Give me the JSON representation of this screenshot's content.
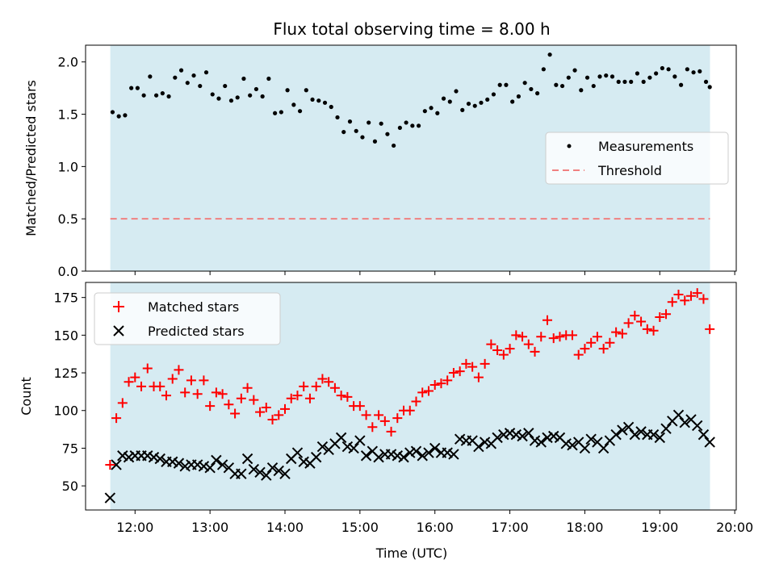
{
  "figure_title": "Flux total observing time = 8.00 h",
  "chart_data": [
    {
      "type": "scatter",
      "title": "Flux total observing time = 8.00 h",
      "xlabel": "",
      "ylabel": "Matched/Predicted stars",
      "x_range_hours": [
        11.34,
        20.02
      ],
      "ylim": [
        0,
        2.16
      ],
      "yticks": [
        "0.0",
        "0.5",
        "1.0",
        "1.5",
        "2.0"
      ],
      "shaded_span_hours": [
        11.67,
        19.67
      ],
      "legend_position": "center-right",
      "threshold": {
        "name": "Threshold",
        "value": 0.5,
        "color": "#f08080"
      },
      "series": [
        {
          "name": "Measurements",
          "color": "#000000",
          "marker": "dot",
          "x": [
            "11:42",
            "11:47",
            "11:52",
            "11:57",
            "12:02",
            "12:07",
            "12:12",
            "12:17",
            "12:22",
            "12:27",
            "12:32",
            "12:37",
            "12:42",
            "12:47",
            "12:52",
            "12:57",
            "13:02",
            "13:07",
            "13:12",
            "13:17",
            "13:22",
            "13:27",
            "13:32",
            "13:37",
            "13:42",
            "13:47",
            "13:52",
            "13:57",
            "14:02",
            "14:07",
            "14:12",
            "14:17",
            "14:22",
            "14:27",
            "14:32",
            "14:37",
            "14:42",
            "14:47",
            "14:52",
            "14:57",
            "15:02",
            "15:07",
            "15:12",
            "15:17",
            "15:22",
            "15:27",
            "15:32",
            "15:37",
            "15:42",
            "15:47",
            "15:52",
            "15:57",
            "16:02",
            "16:07",
            "16:12",
            "16:17",
            "16:22",
            "16:27",
            "16:32",
            "16:37",
            "16:42",
            "16:47",
            "16:52",
            "16:57",
            "17:02",
            "17:07",
            "17:12",
            "17:17",
            "17:22",
            "17:27",
            "17:32",
            "17:37",
            "17:42",
            "17:47",
            "17:52",
            "17:57",
            "18:02",
            "18:07",
            "18:12",
            "18:17",
            "18:22",
            "18:27",
            "18:32",
            "18:37",
            "18:42",
            "18:47",
            "18:52",
            "18:57",
            "19:02",
            "19:07",
            "19:12",
            "19:17",
            "19:22",
            "19:27",
            "19:32",
            "19:37",
            "19:40"
          ],
          "y": [
            1.52,
            1.48,
            1.49,
            1.75,
            1.75,
            1.68,
            1.86,
            1.68,
            1.7,
            1.67,
            1.85,
            1.92,
            1.8,
            1.87,
            1.77,
            1.9,
            1.69,
            1.65,
            1.77,
            1.63,
            1.66,
            1.84,
            1.68,
            1.74,
            1.67,
            1.84,
            1.51,
            1.52,
            1.73,
            1.59,
            1.53,
            1.73,
            1.64,
            1.63,
            1.61,
            1.57,
            1.47,
            1.33,
            1.43,
            1.34,
            1.28,
            1.42,
            1.24,
            1.41,
            1.31,
            1.2,
            1.37,
            1.42,
            1.39,
            1.39,
            1.53,
            1.56,
            1.51,
            1.65,
            1.62,
            1.72,
            1.54,
            1.6,
            1.58,
            1.61,
            1.64,
            1.69,
            1.78,
            1.78,
            1.62,
            1.67,
            1.8,
            1.74,
            1.7,
            1.93,
            2.07,
            1.78,
            1.77,
            1.85,
            1.92,
            1.73,
            1.85,
            1.77,
            1.86,
            1.87,
            1.86,
            1.81,
            1.81,
            1.81,
            1.89,
            1.81,
            1.85,
            1.89,
            1.94,
            1.93,
            1.86,
            1.78,
            1.93,
            1.9,
            1.91,
            1.81,
            1.76
          ]
        }
      ]
    },
    {
      "type": "scatter",
      "title": "",
      "xlabel": "Time (UTC)",
      "ylabel": "Count",
      "x_range_hours": [
        11.34,
        20.02
      ],
      "ylim": [
        34,
        185
      ],
      "yticks": [
        "50",
        "75",
        "100",
        "125",
        "150",
        "175"
      ],
      "xticks": [
        "12:00",
        "13:00",
        "14:00",
        "15:00",
        "16:00",
        "17:00",
        "18:00",
        "19:00",
        "20:00"
      ],
      "shaded_span_hours": [
        11.67,
        19.67
      ],
      "legend_position": "upper-left",
      "series": [
        {
          "name": "Matched stars",
          "color": "#ff0000",
          "marker": "plus",
          "x": [
            "11:40",
            "11:45",
            "11:50",
            "11:55",
            "12:00",
            "12:05",
            "12:10",
            "12:15",
            "12:20",
            "12:25",
            "12:30",
            "12:35",
            "12:40",
            "12:45",
            "12:50",
            "12:55",
            "13:00",
            "13:05",
            "13:10",
            "13:15",
            "13:20",
            "13:25",
            "13:30",
            "13:35",
            "13:40",
            "13:45",
            "13:50",
            "13:55",
            "14:00",
            "14:05",
            "14:10",
            "14:15",
            "14:20",
            "14:25",
            "14:30",
            "14:35",
            "14:40",
            "14:45",
            "14:50",
            "14:55",
            "15:00",
            "15:05",
            "15:10",
            "15:15",
            "15:20",
            "15:25",
            "15:30",
            "15:35",
            "15:40",
            "15:45",
            "15:50",
            "15:55",
            "16:00",
            "16:05",
            "16:10",
            "16:15",
            "16:20",
            "16:25",
            "16:30",
            "16:35",
            "16:40",
            "16:45",
            "16:50",
            "16:55",
            "17:00",
            "17:05",
            "17:10",
            "17:15",
            "17:20",
            "17:25",
            "17:30",
            "17:35",
            "17:40",
            "17:45",
            "17:50",
            "17:55",
            "18:00",
            "18:05",
            "18:10",
            "18:15",
            "18:20",
            "18:25",
            "18:30",
            "18:35",
            "18:40",
            "18:45",
            "18:50",
            "18:55",
            "19:00",
            "19:05",
            "19:10",
            "19:15",
            "19:20",
            "19:25",
            "19:30",
            "19:35",
            "19:40"
          ],
          "y": [
            64,
            95,
            105,
            119,
            122,
            116,
            128,
            116,
            116,
            110,
            121,
            127,
            112,
            120,
            111,
            120,
            103,
            112,
            111,
            104,
            98,
            108,
            115,
            107,
            99,
            102,
            94,
            97,
            101,
            108,
            110,
            116,
            108,
            116,
            121,
            119,
            115,
            110,
            109,
            103,
            103,
            97,
            89,
            97,
            93,
            86,
            95,
            100,
            100,
            106,
            112,
            113,
            117,
            118,
            120,
            125,
            126,
            131,
            129,
            122,
            131,
            144,
            140,
            137,
            141,
            150,
            149,
            144,
            139,
            149,
            160,
            148,
            149,
            150,
            150,
            137,
            141,
            145,
            149,
            141,
            145,
            152,
            151,
            158,
            163,
            159,
            154,
            153,
            162,
            164,
            172,
            177,
            173,
            176,
            178,
            174,
            154
          ]
        },
        {
          "name": "Predicted stars",
          "color": "#000000",
          "marker": "x",
          "x": [
            "11:40",
            "11:45",
            "11:50",
            "11:55",
            "12:00",
            "12:05",
            "12:10",
            "12:15",
            "12:20",
            "12:25",
            "12:30",
            "12:35",
            "12:40",
            "12:45",
            "12:50",
            "12:55",
            "13:00",
            "13:05",
            "13:10",
            "13:15",
            "13:20",
            "13:25",
            "13:30",
            "13:35",
            "13:40",
            "13:45",
            "13:50",
            "13:55",
            "14:00",
            "14:05",
            "14:10",
            "14:15",
            "14:20",
            "14:25",
            "14:30",
            "14:35",
            "14:40",
            "14:45",
            "14:50",
            "14:55",
            "15:00",
            "15:05",
            "15:10",
            "15:15",
            "15:20",
            "15:25",
            "15:30",
            "15:35",
            "15:40",
            "15:45",
            "15:50",
            "15:55",
            "16:00",
            "16:05",
            "16:10",
            "16:15",
            "16:20",
            "16:25",
            "16:30",
            "16:35",
            "16:40",
            "16:45",
            "16:50",
            "16:55",
            "17:00",
            "17:05",
            "17:10",
            "17:15",
            "17:20",
            "17:25",
            "17:30",
            "17:35",
            "17:40",
            "17:45",
            "17:50",
            "17:55",
            "18:00",
            "18:05",
            "18:10",
            "18:15",
            "18:20",
            "18:25",
            "18:30",
            "18:35",
            "18:40",
            "18:45",
            "18:50",
            "18:55",
            "19:00",
            "19:05",
            "19:10",
            "19:15",
            "19:20",
            "19:25",
            "19:30",
            "19:35",
            "19:40"
          ],
          "y": [
            42,
            64,
            70,
            69,
            70,
            70,
            70,
            69,
            68,
            66,
            66,
            65,
            63,
            64,
            64,
            63,
            62,
            67,
            64,
            62,
            58,
            58,
            68,
            61,
            59,
            57,
            62,
            60,
            58,
            68,
            72,
            66,
            65,
            69,
            76,
            74,
            78,
            82,
            76,
            75,
            80,
            70,
            73,
            69,
            71,
            71,
            70,
            69,
            72,
            73,
            70,
            72,
            75,
            72,
            72,
            71,
            81,
            80,
            80,
            76,
            79,
            78,
            82,
            84,
            85,
            84,
            83,
            85,
            80,
            79,
            82,
            83,
            82,
            78,
            77,
            79,
            75,
            81,
            79,
            75,
            80,
            84,
            87,
            89,
            84,
            86,
            84,
            84,
            82,
            88,
            93,
            97,
            92,
            94,
            90,
            84,
            79
          ]
        }
      ]
    }
  ]
}
